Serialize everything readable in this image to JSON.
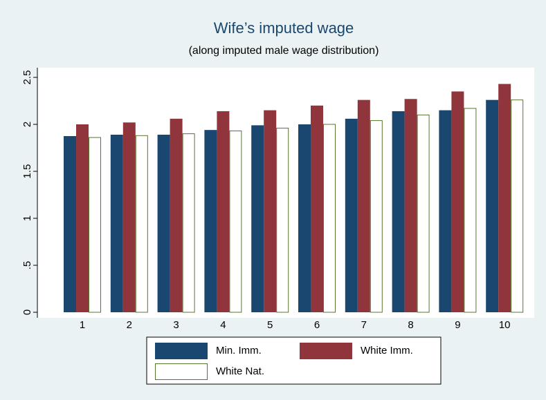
{
  "chart_data": {
    "type": "bar",
    "title": "Wife’s imputed wage",
    "subtitle": "(along imputed male wage distribution)",
    "categories": [
      "1",
      "2",
      "3",
      "4",
      "5",
      "6",
      "7",
      "8",
      "9",
      "10"
    ],
    "series": [
      {
        "name": "Min. Imm.",
        "color": "#1a476f",
        "values": [
          1.875,
          1.89,
          1.89,
          1.94,
          1.99,
          2.0,
          2.06,
          2.14,
          2.15,
          2.26
        ]
      },
      {
        "name": "White Imm.",
        "color": "#90353b",
        "values": [
          2.0,
          2.02,
          2.06,
          2.14,
          2.15,
          2.2,
          2.26,
          2.27,
          2.35,
          2.43
        ]
      },
      {
        "name": "White Nat.",
        "color": "#55752f",
        "fill": "#ffffff",
        "values": [
          1.86,
          1.88,
          1.9,
          1.93,
          1.96,
          2.0,
          2.04,
          2.1,
          2.17,
          2.26
        ]
      }
    ],
    "ylim": [
      0,
      2.5
    ],
    "yticks": [
      0,
      {
        "value": 0.5,
        "label": ".5"
      },
      1,
      1.5,
      2,
      2.5
    ],
    "legend": "bottom"
  }
}
